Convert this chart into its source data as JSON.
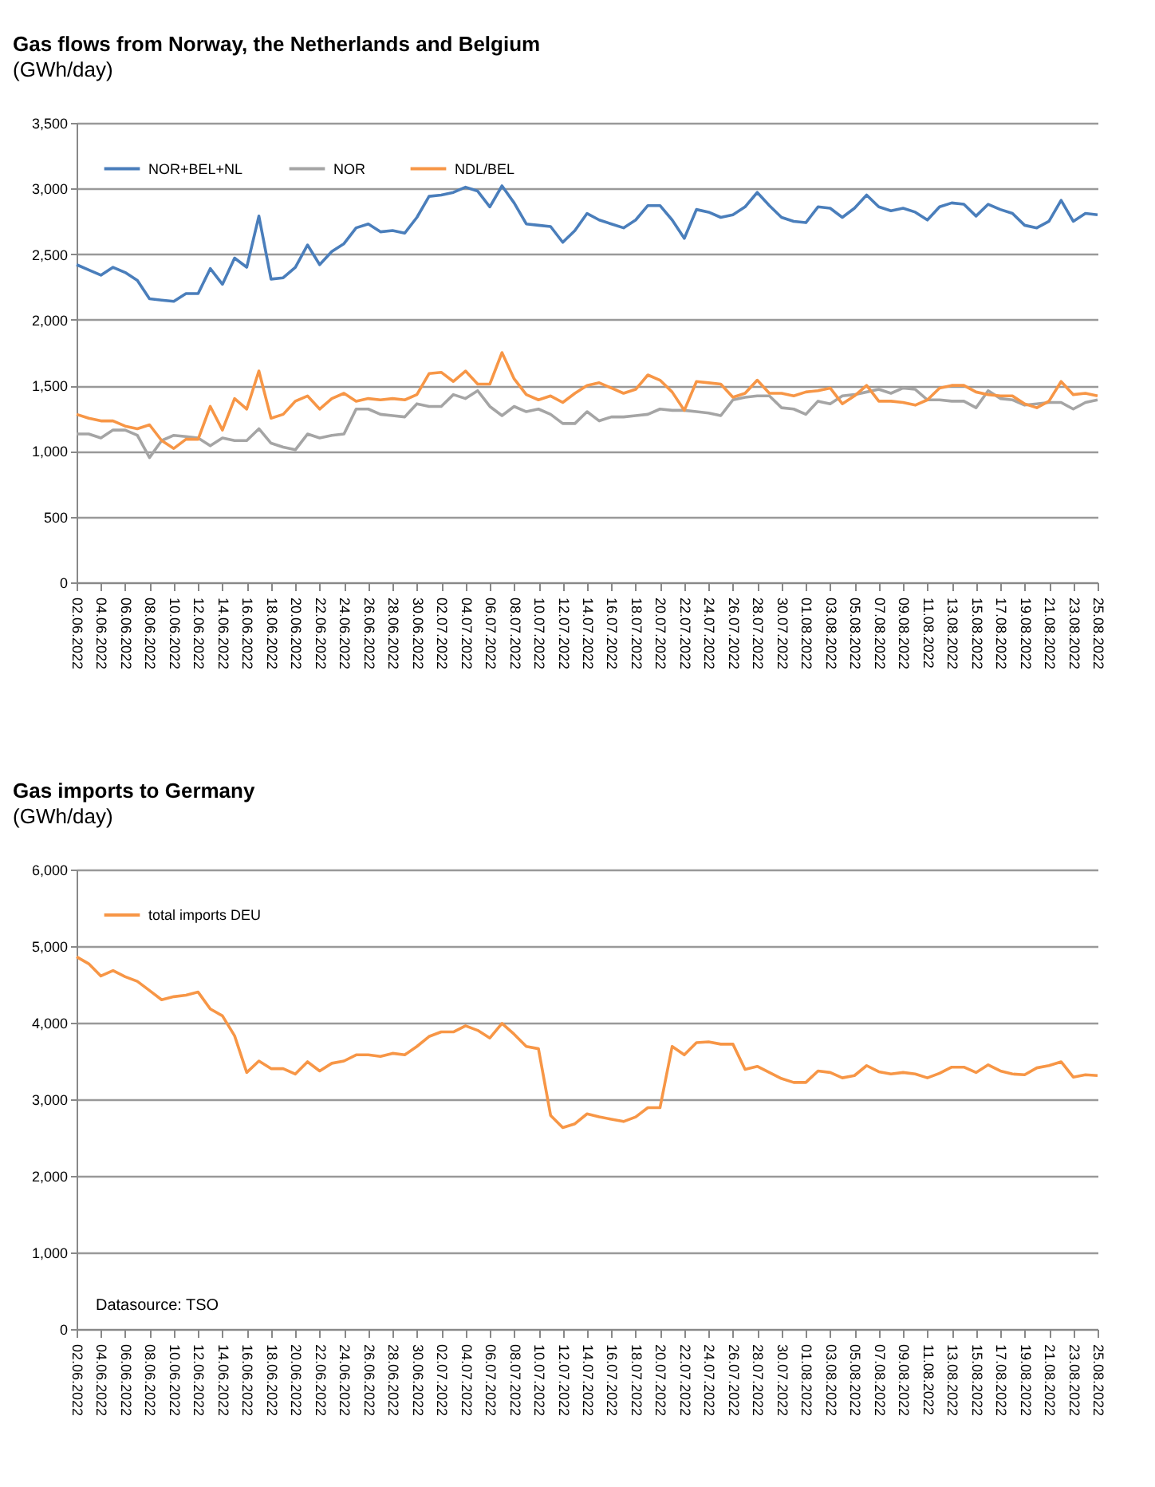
{
  "chart_data": [
    {
      "type": "line",
      "title": "Gas flows from Norway, the Netherlands and Belgium",
      "subtitle": "(GWh/day)",
      "categories": [
        "02.06.2022",
        null,
        "04.06.2022",
        null,
        "06.06.2022",
        null,
        "08.06.2022",
        null,
        "10.06.2022",
        null,
        "12.06.2022",
        null,
        "14.06.2022",
        null,
        "16.06.2022",
        null,
        "18.06.2022",
        null,
        "20.06.2022",
        null,
        "22.06.2022",
        null,
        "24.06.2022",
        null,
        "26.06.2022",
        null,
        "28.06.2022",
        null,
        "30.06.2022",
        null,
        "02.07.2022",
        null,
        "04.07.2022",
        null,
        "06.07.2022",
        null,
        "08.07.2022",
        null,
        "10.07.2022",
        null,
        "12.07.2022",
        null,
        "14.07.2022",
        null,
        "16.07.2022",
        null,
        "18.07.2022",
        null,
        "20.07.2022",
        null,
        "22.07.2022",
        null,
        "24.07.2022",
        null,
        "26.07.2022",
        null,
        "28.07.2022",
        null,
        "30.07.2022",
        null,
        "01.08.2022",
        null,
        "03.08.2022",
        null,
        "05.08.2022",
        null,
        "07.08.2022",
        null,
        "09.08.2022",
        null,
        "11.08.2022",
        null,
        "13.08.2022",
        null,
        "15.08.2022",
        null,
        "17.08.2022",
        null,
        "19.08.2022",
        null,
        "21.08.2022",
        null,
        "23.08.2022",
        null,
        "25.08.2022"
      ],
      "series": [
        {
          "name": "NOR+BEL+NL",
          "color": "#4a7ebb",
          "values": [
            2420,
            2380,
            2340,
            2400,
            2360,
            2300,
            2160,
            2150,
            2140,
            2200,
            2200,
            2390,
            2270,
            2470,
            2400,
            2790,
            2310,
            2320,
            2400,
            2570,
            2420,
            2520,
            2580,
            2700,
            2730,
            2670,
            2680,
            2660,
            2780,
            2940,
            2950,
            2970,
            3010,
            2980,
            2860,
            3020,
            2890,
            2730,
            2720,
            2710,
            2590,
            2680,
            2810,
            2760,
            2730,
            2700,
            2760,
            2870,
            2870,
            2760,
            2620,
            2840,
            2820,
            2780,
            2800,
            2860,
            2970,
            2870,
            2780,
            2750,
            2740,
            2860,
            2850,
            2780,
            2850,
            2950,
            2860,
            2830,
            2850,
            2820,
            2760,
            2860,
            2890,
            2880,
            2790,
            2880,
            2840,
            2810,
            2720,
            2700,
            2750,
            2910,
            2750,
            2810,
            2800
          ]
        },
        {
          "name": "NOR",
          "color": "#a5a5a5",
          "values": [
            1130,
            1130,
            1100,
            1160,
            1160,
            1120,
            950,
            1080,
            1120,
            1110,
            1100,
            1040,
            1100,
            1080,
            1080,
            1170,
            1060,
            1030,
            1010,
            1130,
            1100,
            1120,
            1130,
            1320,
            1320,
            1280,
            1270,
            1260,
            1360,
            1340,
            1340,
            1430,
            1400,
            1460,
            1340,
            1270,
            1340,
            1300,
            1320,
            1280,
            1210,
            1210,
            1300,
            1230,
            1260,
            1260,
            1270,
            1280,
            1320,
            1310,
            1310,
            1300,
            1290,
            1270,
            1390,
            1410,
            1420,
            1420,
            1330,
            1320,
            1280,
            1380,
            1360,
            1420,
            1430,
            1450,
            1470,
            1440,
            1480,
            1470,
            1390,
            1390,
            1380,
            1380,
            1330,
            1460,
            1400,
            1390,
            1350,
            1360,
            1370,
            1370,
            1320,
            1370,
            1390
          ]
        },
        {
          "name": "NDL/BEL",
          "color": "#f79646",
          "values": [
            1280,
            1250,
            1230,
            1230,
            1190,
            1170,
            1200,
            1080,
            1020,
            1090,
            1090,
            1340,
            1160,
            1400,
            1320,
            1610,
            1250,
            1280,
            1380,
            1420,
            1320,
            1400,
            1440,
            1380,
            1400,
            1390,
            1400,
            1390,
            1430,
            1590,
            1600,
            1530,
            1610,
            1510,
            1510,
            1750,
            1550,
            1430,
            1390,
            1420,
            1370,
            1440,
            1500,
            1520,
            1480,
            1440,
            1470,
            1580,
            1540,
            1450,
            1310,
            1530,
            1520,
            1510,
            1410,
            1440,
            1540,
            1440,
            1440,
            1420,
            1450,
            1460,
            1480,
            1360,
            1420,
            1500,
            1380,
            1380,
            1370,
            1350,
            1390,
            1480,
            1500,
            1500,
            1450,
            1430,
            1420,
            1420,
            1360,
            1330,
            1380,
            1530,
            1430,
            1440,
            1420
          ]
        }
      ],
      "ylim": [
        0,
        3500
      ],
      "yticks": [
        {
          "value": 0,
          "label": "0"
        },
        {
          "value": 500,
          "label": "500"
        },
        {
          "value": 1000,
          "label": "1,000"
        },
        {
          "value": 1500,
          "label": "1,500"
        },
        {
          "value": 2000,
          "label": "2,000"
        },
        {
          "value": 2500,
          "label": "2,500"
        },
        {
          "value": 3000,
          "label": "3,000"
        },
        {
          "value": 3500,
          "label": "3,500"
        }
      ],
      "grid": "y",
      "legend": "top left"
    },
    {
      "type": "line",
      "title": "Gas imports to Germany",
      "subtitle": "(GWh/day)",
      "categories": [
        "02.06.2022",
        null,
        "04.06.2022",
        null,
        "06.06.2022",
        null,
        "08.06.2022",
        null,
        "10.06.2022",
        null,
        "12.06.2022",
        null,
        "14.06.2022",
        null,
        "16.06.2022",
        null,
        "18.06.2022",
        null,
        "20.06.2022",
        null,
        "22.06.2022",
        null,
        "24.06.2022",
        null,
        "26.06.2022",
        null,
        "28.06.2022",
        null,
        "30.06.2022",
        null,
        "02.07.2022",
        null,
        "04.07.2022",
        null,
        "06.07.2022",
        null,
        "08.07.2022",
        null,
        "10.07.2022",
        null,
        "12.07.2022",
        null,
        "14.07.2022",
        null,
        "16.07.2022",
        null,
        "18.07.2022",
        null,
        "20.07.2022",
        null,
        "22.07.2022",
        null,
        "24.07.2022",
        null,
        "26.07.2022",
        null,
        "28.07.2022",
        null,
        "30.07.2022",
        null,
        "01.08.2022",
        null,
        "03.08.2022",
        null,
        "05.08.2022",
        null,
        "07.08.2022",
        null,
        "09.08.2022",
        null,
        "11.08.2022",
        null,
        "13.08.2022",
        null,
        "15.08.2022",
        null,
        "17.08.2022",
        null,
        "19.08.2022",
        null,
        "21.08.2022",
        null,
        "23.08.2022",
        null,
        "25.08.2022"
      ],
      "series": [
        {
          "name": "total imports DEU",
          "color": "#f79646",
          "values": [
            4860,
            4770,
            4610,
            4680,
            4600,
            4540,
            4420,
            4300,
            4340,
            4360,
            4400,
            4180,
            4090,
            3830,
            3350,
            3500,
            3400,
            3400,
            3330,
            3490,
            3370,
            3470,
            3500,
            3580,
            3580,
            3560,
            3600,
            3580,
            3690,
            3820,
            3880,
            3880,
            3960,
            3900,
            3800,
            3990,
            3850,
            3690,
            3660,
            2790,
            2630,
            2680,
            2810,
            2770,
            2740,
            2710,
            2770,
            2890,
            2890,
            3690,
            3580,
            3740,
            3750,
            3720,
            3720,
            3390,
            3430,
            3350,
            3270,
            3220,
            3220,
            3370,
            3350,
            3280,
            3310,
            3440,
            3360,
            3330,
            3350,
            3330,
            3280,
            3340,
            3420,
            3420,
            3350,
            3450,
            3370,
            3330,
            3320,
            3410,
            3440,
            3490,
            3290,
            3320,
            3310
          ]
        }
      ],
      "ylim": [
        0,
        6000
      ],
      "yticks": [
        {
          "value": 0,
          "label": "0"
        },
        {
          "value": 1000,
          "label": "1,000"
        },
        {
          "value": 2000,
          "label": "2,000"
        },
        {
          "value": 3000,
          "label": "3,000"
        },
        {
          "value": 4000,
          "label": "4,000"
        },
        {
          "value": 5000,
          "label": "5,000"
        },
        {
          "value": 6000,
          "label": "6,000"
        }
      ],
      "grid": "y",
      "legend": "top left",
      "annotations": [
        "Datasource: TSO"
      ]
    }
  ]
}
